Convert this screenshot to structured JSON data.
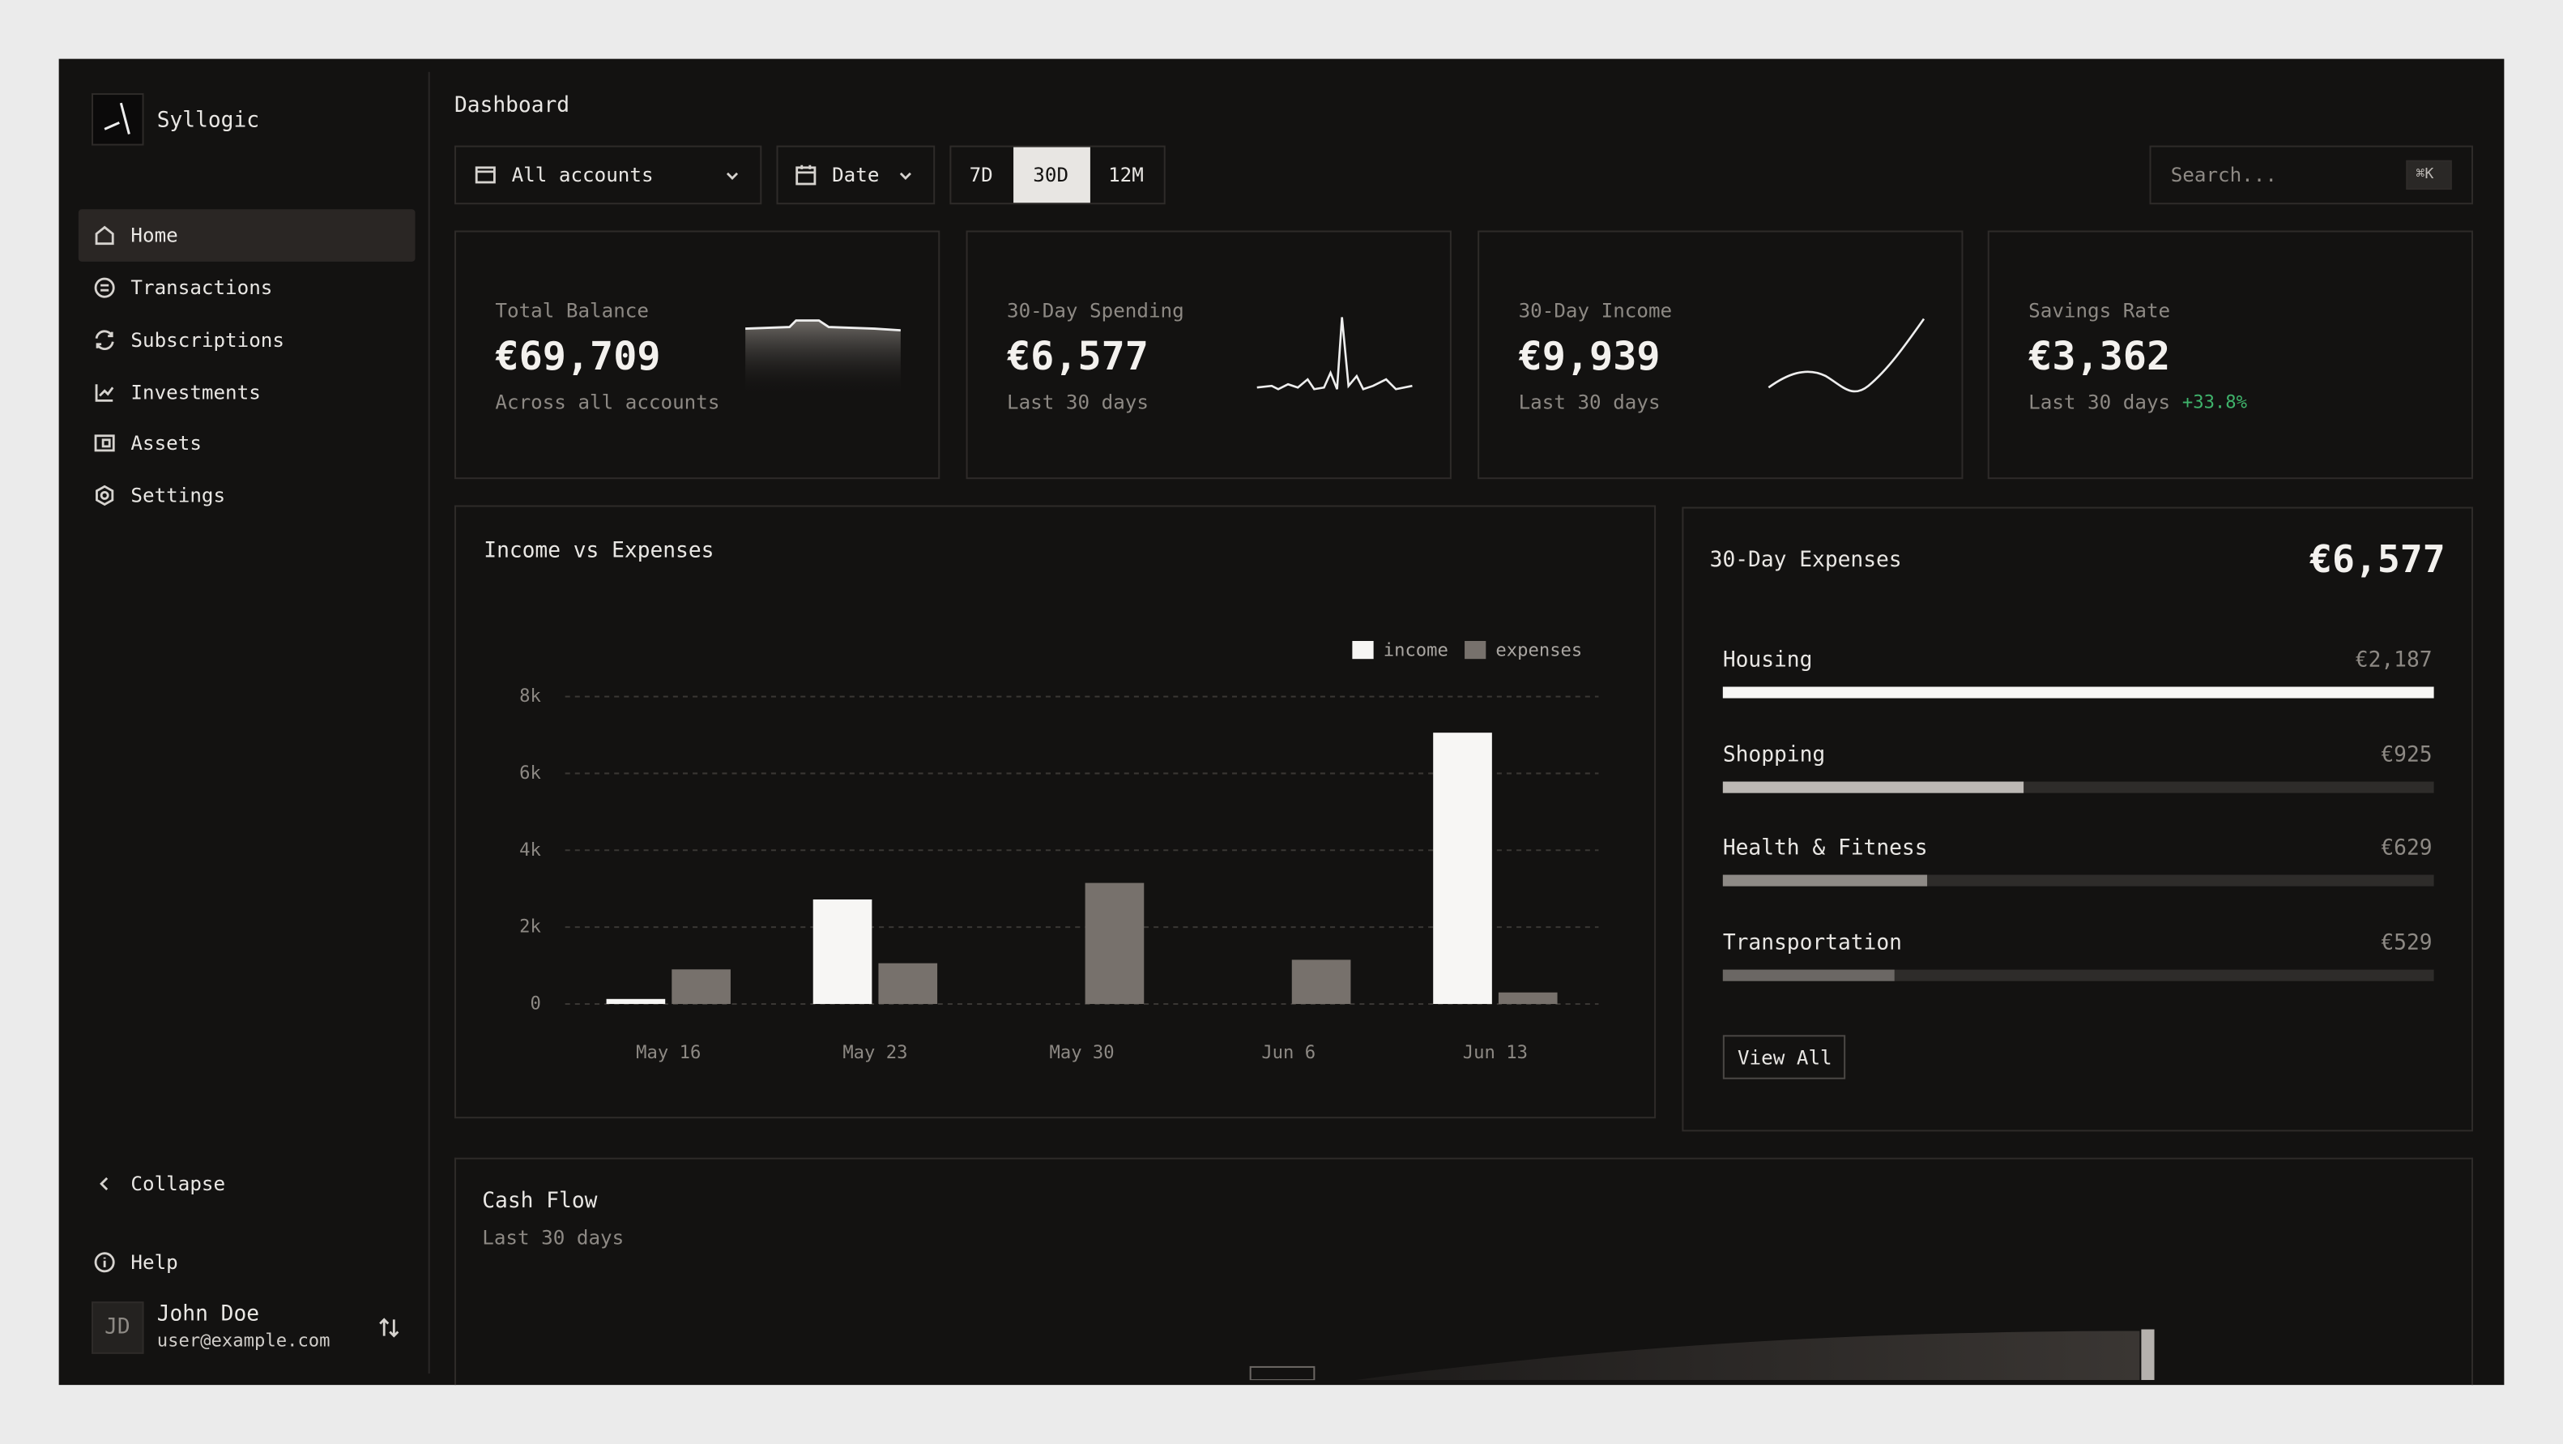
{
  "app": {
    "name": "Syllogic"
  },
  "nav": [
    "Home",
    "Transactions",
    "Subscriptions",
    "Investments",
    "Assets",
    "Settings"
  ],
  "sidebar_footer": {
    "collapse": "Collapse",
    "help": "Help",
    "user": {
      "initials": "JD",
      "name": "John Doe",
      "email": "user@example.com"
    }
  },
  "header": {
    "title": "Dashboard",
    "account_filter": "All accounts",
    "date_filter": "Date",
    "ranges": [
      "7D",
      "30D",
      "12M"
    ],
    "search_placeholder": "Search...",
    "search_shortcut": "⌘K"
  },
  "cards": [
    {
      "label": "Total Balance",
      "value": "€69,709",
      "note": "Across all accounts"
    },
    {
      "label": "30-Day Spending",
      "value": "€6,577",
      "note": "Last 30 days"
    },
    {
      "label": "30-Day Income",
      "value": "€9,939",
      "note": "Last 30 days"
    },
    {
      "label": "Savings Rate",
      "value": "€3,362",
      "note": "Last 30 days",
      "change": "+33.8%"
    }
  ],
  "chart_data": {
    "type": "bar",
    "title": "Income vs Expenses",
    "categories": [
      "May 16",
      "May 23",
      "May 30",
      "Jun 6",
      "Jun 13"
    ],
    "series": [
      {
        "name": "income",
        "color": "#f7f6f4",
        "values": [
          130,
          2720,
          0,
          0,
          7060
        ]
      },
      {
        "name": "expenses",
        "color": "#77716c",
        "values": [
          900,
          1060,
          3150,
          1150,
          300
        ]
      }
    ],
    "ylim": [
      0,
      8000
    ],
    "yticks": [
      0,
      {
        "value": 2000,
        "label": "2k"
      },
      {
        "value": 4000,
        "label": "4k"
      },
      {
        "value": 6000,
        "label": "6k"
      },
      {
        "value": 8000,
        "label": "8k"
      }
    ],
    "grid": true,
    "legend": "top-right"
  },
  "expenses": {
    "title": "30-Day Expenses",
    "total": "€6,577",
    "categories": [
      {
        "name": "Housing",
        "value": 2187,
        "value_label": "€2,187",
        "color": "#f7f6f4"
      },
      {
        "name": "Shopping",
        "value": 925,
        "value_label": "€925",
        "color": "#bcb8b4"
      },
      {
        "name": "Health & Fitness",
        "value": 629,
        "value_label": "€629",
        "color": "#8e8a86"
      },
      {
        "name": "Transportation",
        "value": 529,
        "value_label": "€529",
        "color": "#6b6764"
      }
    ],
    "view_all": "View All"
  },
  "cash_flow": {
    "title": "Cash Flow",
    "subtitle": "Last 30 days"
  }
}
